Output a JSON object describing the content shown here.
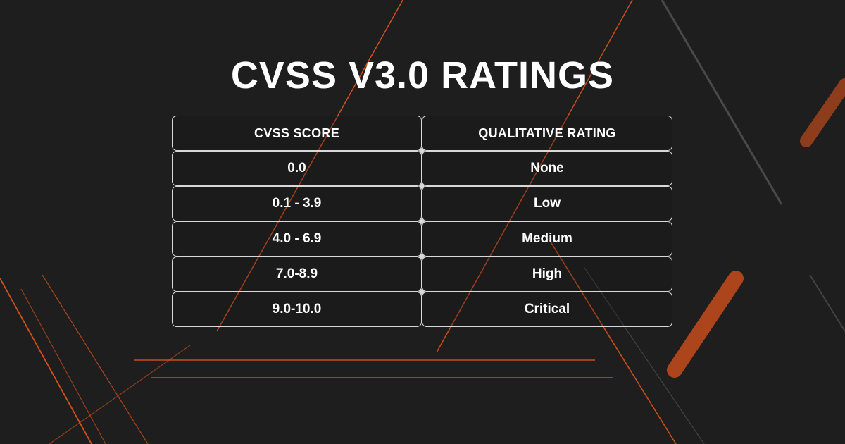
{
  "title": "CVSS V3.0 RATINGS",
  "table": {
    "headers": [
      "CVSS SCORE",
      "QUALITATIVE RATING"
    ],
    "rows": [
      [
        "0.0",
        "None"
      ],
      [
        "0.1 - 3.9",
        "Low"
      ],
      [
        "4.0 - 6.9",
        "Medium"
      ],
      [
        "7.0-8.9",
        "High"
      ],
      [
        "9.0-10.0",
        "Critical"
      ]
    ]
  },
  "colors": {
    "background": "#1e1e1e",
    "accent": "#e8561c",
    "text": "#ffffff",
    "border": "#d9d9d9"
  }
}
